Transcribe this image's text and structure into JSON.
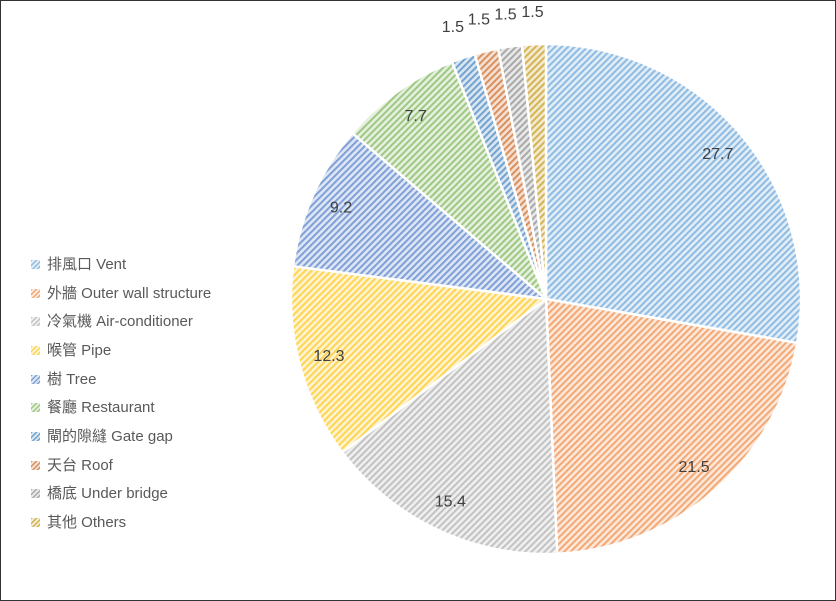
{
  "chart_data": {
    "type": "pie",
    "title": "",
    "legend_position": "left",
    "start_angle_deg": 0,
    "direction": "clockwise",
    "fill_style": "diagonal-stripe-pattern-upward",
    "data_label_color": "#404040",
    "legend_text_color": "#595959",
    "frame_border_color": "#333333",
    "categories": [
      "排風口 Vent",
      "外牆 Outer wall structure",
      "冷氣機 Air-conditioner",
      "喉管 Pipe",
      "樹 Tree",
      "餐廳 Restaurant",
      "閘的隙縫 Gate gap",
      "天台 Roof",
      "橋底 Under bridge",
      "其他 Others"
    ],
    "values": [
      27.7,
      21.5,
      15.4,
      12.3,
      9.2,
      7.7,
      1.5,
      1.5,
      1.5,
      1.5
    ],
    "data_labels": [
      "27.7",
      "21.5",
      "15.4",
      "12.3",
      "9.2",
      "7.7",
      "1.5",
      "1.5",
      "1.5",
      "1.5"
    ],
    "colors": [
      "#5B9BD5",
      "#ED7D31",
      "#A5A5A5",
      "#FFC000",
      "#4472C4",
      "#70AD47",
      "#2E75B6",
      "#C55A11",
      "#7F7F7F",
      "#BF8F00"
    ]
  }
}
